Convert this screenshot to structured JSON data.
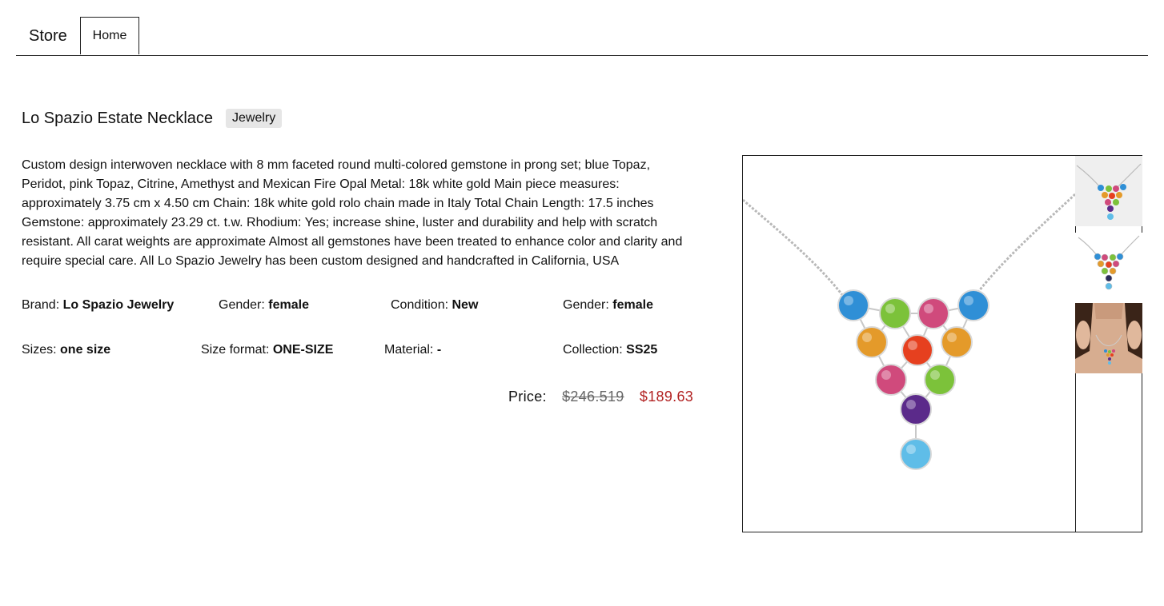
{
  "nav": {
    "brand": "Store",
    "tab_home": "Home"
  },
  "product": {
    "title": "Lo Spazio Estate Necklace",
    "category": "Jewelry",
    "description": "Custom design interwoven necklace with 8 mm faceted round multi-colored gemstone in prong set; blue Topaz, Peridot, pink Topaz, Citrine, Amethyst and Mexican Fire Opal Metal: 18k white gold Main piece measures: approximately 3.75 cm x 4.50 cm Chain: 18k white gold rolo chain made in Italy Total Chain Length: 17.5 inches Gemstone: approximately 23.29 ct. t.w. Rhodium: Yes; increase shine, luster and durability and help with scratch resistant. All carat weights are approximate Almost all gemstones have been treated to enhance color and clarity and require special care. All Lo Spazio Jewelry has been custom designed and handcrafted in California, USA"
  },
  "attributes": {
    "brand": {
      "label": "Brand:",
      "value": "Lo Spazio Jewelry"
    },
    "gender": {
      "label": "Gender:",
      "value": "female"
    },
    "condition": {
      "label": "Condition:",
      "value": "New"
    },
    "gender2": {
      "label": "Gender:",
      "value": "female"
    },
    "sizes": {
      "label": "Sizes:",
      "value": "one size"
    },
    "size_format": {
      "label": "Size format:",
      "value": "ONE-SIZE"
    },
    "material": {
      "label": "Material:",
      "value": "-"
    },
    "collection": {
      "label": "Collection:",
      "value": "SS25"
    }
  },
  "price": {
    "label": "Price:",
    "original": "$246.519",
    "sale": "$189.63",
    "original_color": "#666666",
    "sale_color": "#b22222"
  },
  "gallery": {
    "main_image_icon": "necklace-image",
    "thumbnails": [
      "necklace-thumb-icon",
      "necklace-thumb-icon",
      "model-wearing-necklace-icon"
    ]
  },
  "colors": {
    "blue_topaz": "#2f8fd6",
    "peridot": "#7cc23a",
    "pink_topaz": "#d04a7c",
    "citrine": "#e49a2a",
    "fire_opal": "#e6401f",
    "amethyst": "#5b2a8a",
    "sky_topaz": "#5fbde8"
  }
}
